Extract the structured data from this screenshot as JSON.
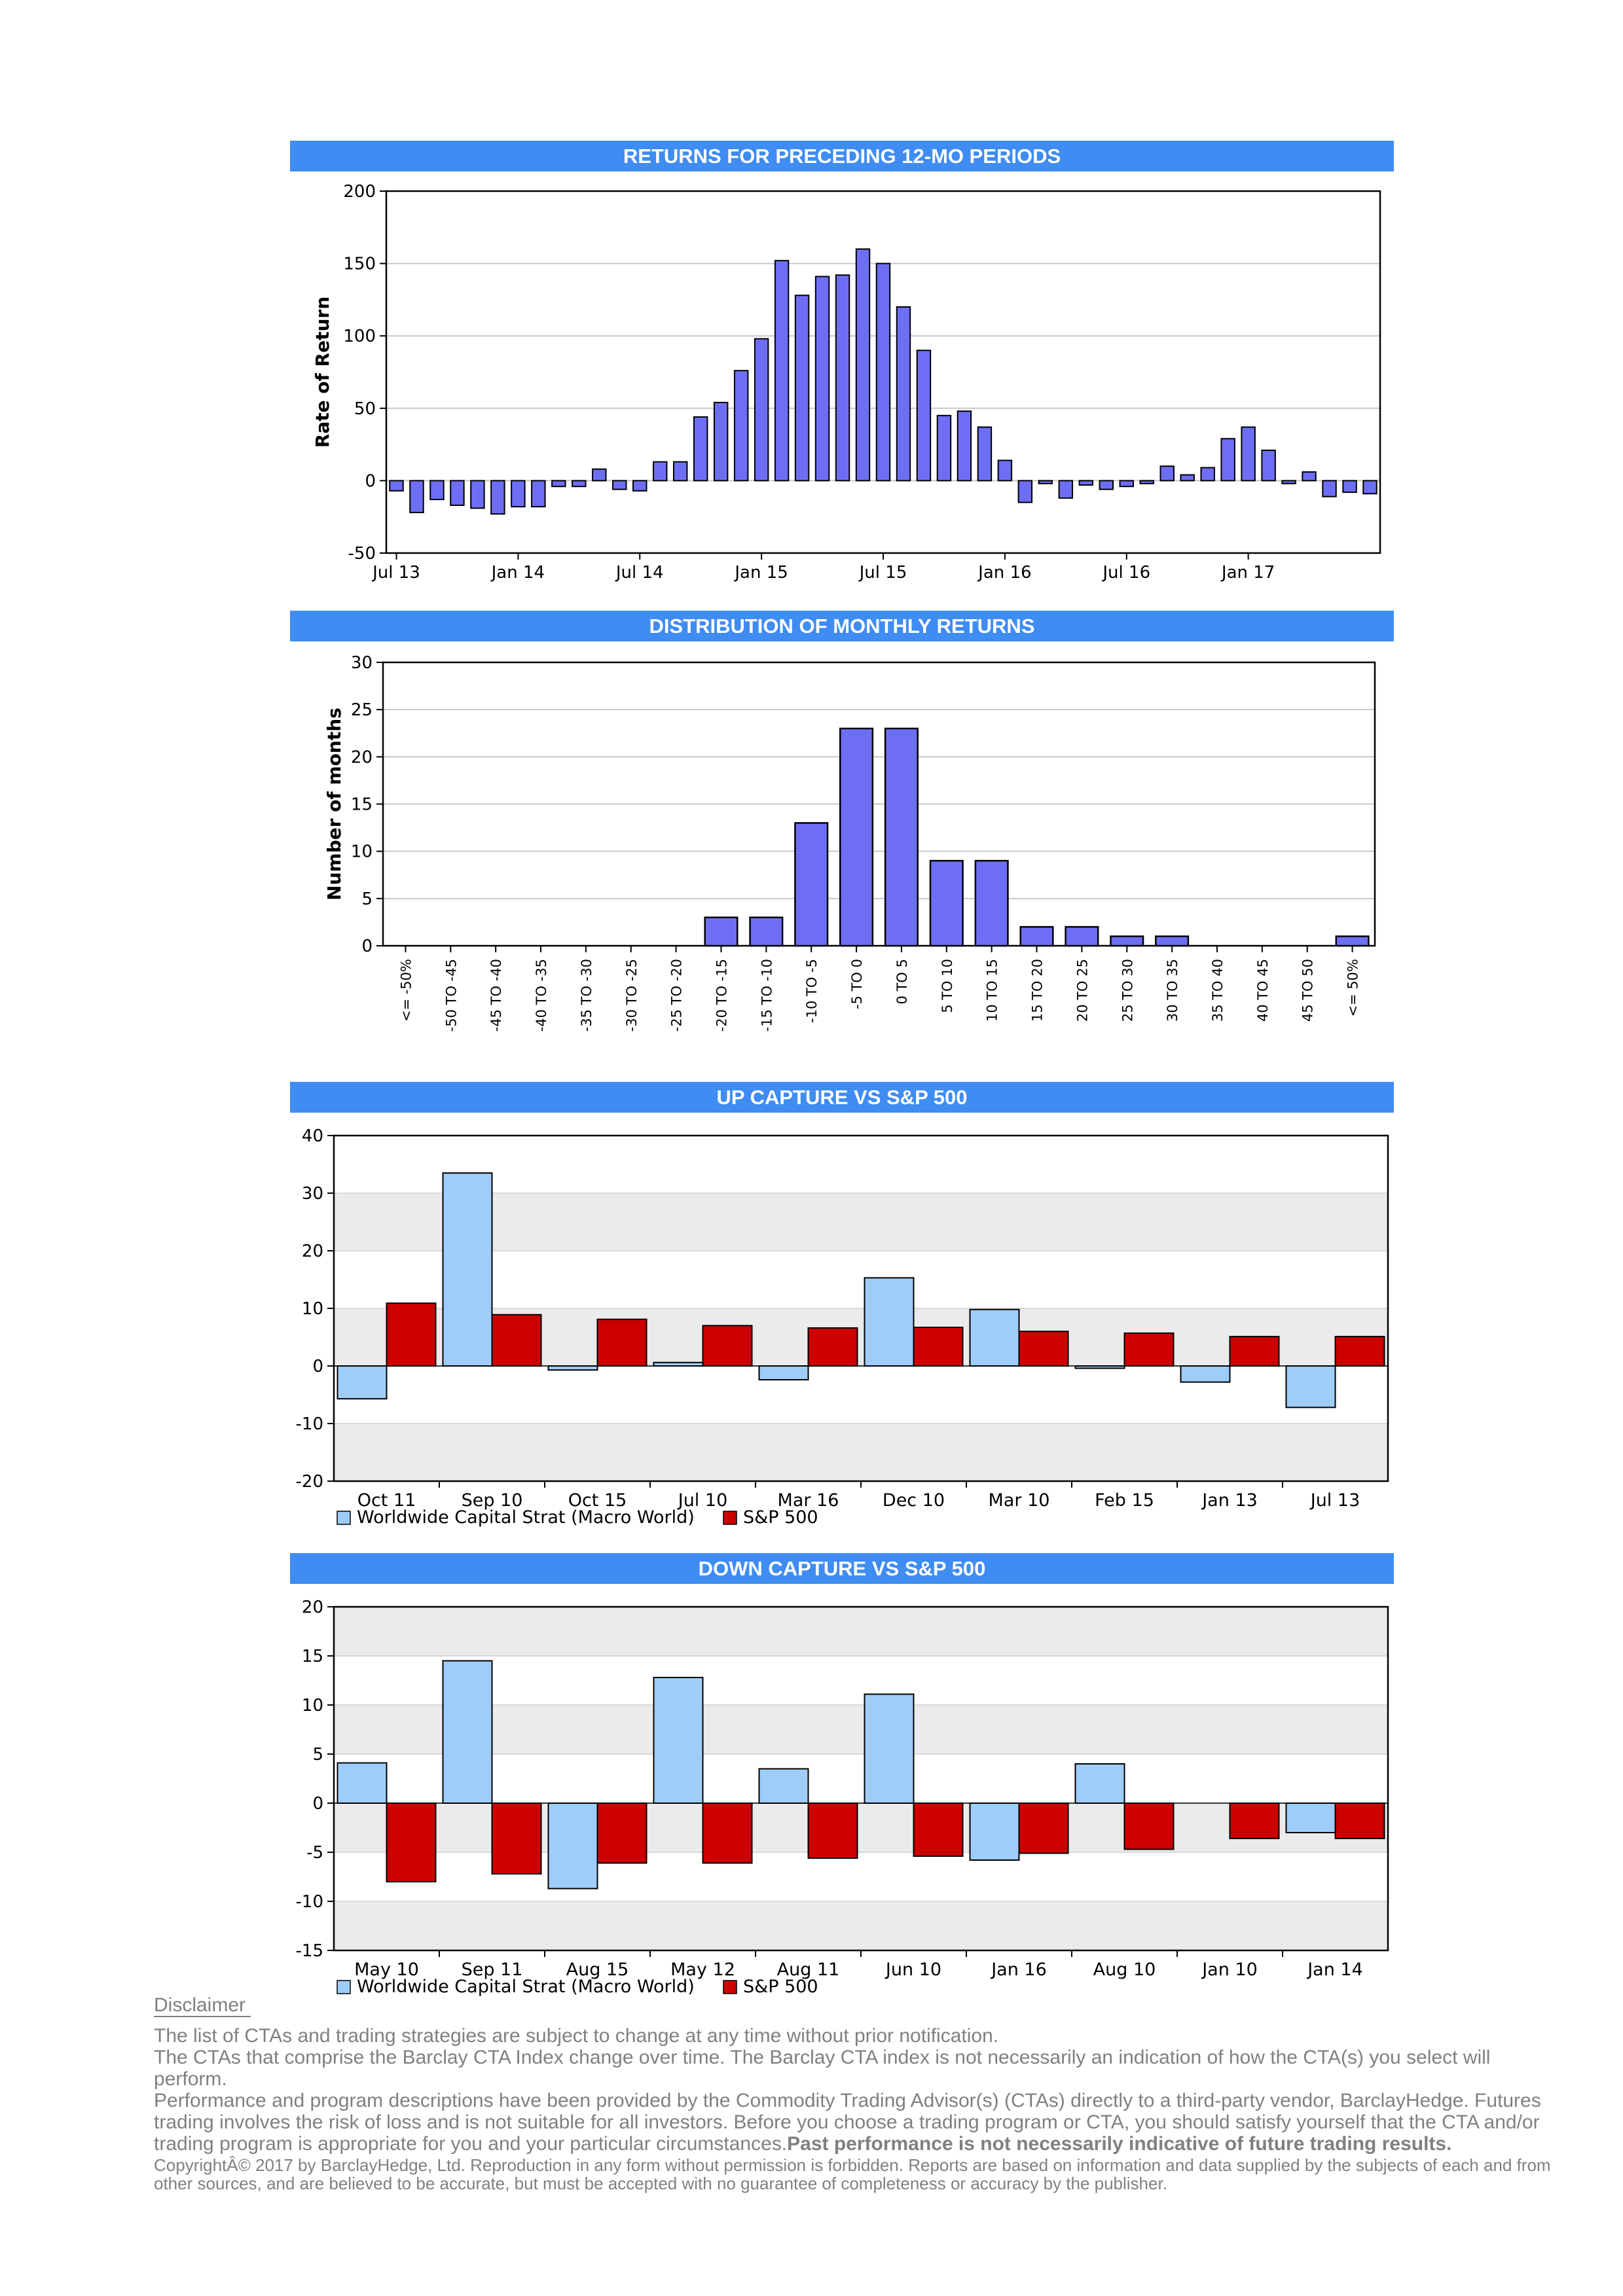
{
  "chart_data": [
    {
      "id": "returns12",
      "type": "bar",
      "title": "RETURNS FOR PRECEDING 12-MO PERIODS",
      "ylabel": "Rate of Return",
      "ylim": [
        -50,
        200
      ],
      "yticks": [
        -50,
        0,
        50,
        100,
        150,
        200
      ],
      "x_tick_labels": [
        "Jul 13",
        "Jan 14",
        "Jul 14",
        "Jan 15",
        "Jul 15",
        "Jan 16",
        "Jul 16",
        "Jan 17"
      ],
      "x_tick_indices": [
        0,
        6,
        12,
        18,
        24,
        30,
        36,
        42
      ],
      "values": [
        -7,
        -22,
        -13,
        -17,
        -19,
        -23,
        -18,
        -18,
        -4,
        -4,
        8,
        -6,
        -7,
        13,
        13,
        44,
        54,
        76,
        98,
        152,
        128,
        141,
        142,
        160,
        150,
        120,
        90,
        45,
        48,
        37,
        14,
        -15,
        -2,
        -12,
        -3,
        -6,
        -4,
        -2,
        10,
        4,
        9,
        29,
        37,
        21,
        -2,
        6,
        -11,
        -8,
        -9
      ],
      "grid": true,
      "color": "#6e6ef5"
    },
    {
      "id": "distribution",
      "type": "bar",
      "title": "DISTRIBUTION OF MONTHLY RETURNS",
      "ylabel": "Number of months",
      "ylim": [
        0,
        30
      ],
      "yticks": [
        0,
        5,
        10,
        15,
        20,
        25,
        30
      ],
      "categories": [
        "<= -50%",
        "-50 TO -45",
        "-45 TO -40",
        "-40 TO -35",
        "-35 TO -30",
        "-30 TO -25",
        "-25 TO -20",
        "-20 TO -15",
        "-15 TO -10",
        "-10 TO -5",
        "-5 TO 0",
        "0 TO 5",
        "5 TO 10",
        "10 TO 15",
        "15 TO 20",
        "20 TO 25",
        "25 TO 30",
        "30 TO 35",
        "35 TO 40",
        "40 TO 45",
        "45 TO 50",
        "<= 50%"
      ],
      "values": [
        0,
        0,
        0,
        0,
        0,
        0,
        0,
        3,
        3,
        13,
        23,
        23,
        9,
        9,
        2,
        2,
        1,
        1,
        0,
        0,
        0,
        1
      ],
      "grid": true,
      "color": "#6e6ef5"
    },
    {
      "id": "upcapture",
      "type": "bar",
      "title": "UP CAPTURE VS S&P 500",
      "ylim": [
        -20,
        40
      ],
      "yticks": [
        -20,
        -10,
        0,
        10,
        20,
        30,
        40
      ],
      "categories": [
        "Oct 11",
        "Sep 10",
        "Oct 15",
        "Jul 10",
        "Mar 16",
        "Dec 10",
        "Mar 10",
        "Feb 15",
        "Jan 13",
        "Jul 13"
      ],
      "series": [
        {
          "name": "Worldwide Capital Strat (Macro World)",
          "color": "#9fcdfa",
          "values": [
            -5.7,
            33.5,
            -0.7,
            0.6,
            -2.4,
            15.3,
            9.8,
            -0.4,
            -2.8,
            -7.2
          ]
        },
        {
          "name": "S&P 500",
          "color": "#cc0000",
          "values": [
            10.9,
            8.9,
            8.1,
            7.0,
            6.6,
            6.7,
            6.0,
            5.7,
            5.1,
            5.1
          ]
        }
      ],
      "legend_position": "bottom-left",
      "grid": true
    },
    {
      "id": "downcapture",
      "type": "bar",
      "title": "DOWN CAPTURE VS S&P 500",
      "ylim": [
        -15,
        20
      ],
      "yticks": [
        -15,
        -10,
        -5,
        0,
        5,
        10,
        15,
        20
      ],
      "categories": [
        "May 10",
        "Sep 11",
        "Aug 15",
        "May 12",
        "Aug 11",
        "Jun 10",
        "Jan 16",
        "Aug 10",
        "Jan 10",
        "Jan 14"
      ],
      "series": [
        {
          "name": "Worldwide Capital Strat (Macro World)",
          "color": "#9fcdfa",
          "values": [
            4.1,
            14.5,
            -8.7,
            12.8,
            3.5,
            11.1,
            -5.8,
            4.0,
            0,
            -3.0
          ]
        },
        {
          "name": "S&P 500",
          "color": "#cc0000",
          "values": [
            -8.0,
            -7.2,
            -6.1,
            -6.1,
            -5.6,
            -5.4,
            -5.1,
            -4.7,
            -3.6,
            -3.6
          ]
        }
      ],
      "legend_position": "bottom-left",
      "grid": true
    }
  ],
  "disclaimer": {
    "heading": "Disclaimer",
    "p1": "The list of CTAs and trading strategies are subject to change at any time without prior notification.",
    "p2": "The CTAs that comprise the Barclay CTA Index change over time.  The Barclay CTA index is not necessarily an indication of how the CTA(s) you select will perform.",
    "p3": "Performance and program descriptions have been provided by the Commodity Trading Advisor(s) (CTAs) directly to a third-party vendor, BarclayHedge. Futures trading involves the risk of loss and is not suitable for all investors.  Before you choose a trading program or CTA, you should satisfy yourself that the CTA and/or trading program is appropriate for you and your particular circumstances.",
    "p3_bold": "Past performance is not necessarily indicative of future trading results.",
    "copyright": "CopyrightÂ©  2017 by BarclayHedge, Ltd. Reproduction in any form without permission is forbidden. Reports are based on information and data supplied by the subjects of each and from other sources, and are believed to be accurate, but must be accepted with no guarantee of completeness or accuracy by the publisher."
  }
}
